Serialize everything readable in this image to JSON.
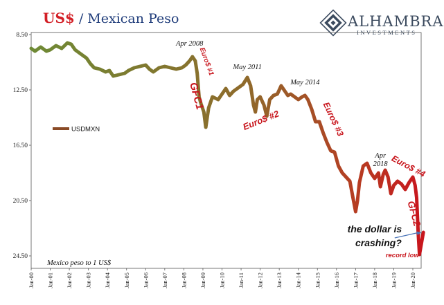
{
  "title": {
    "part1": "US$",
    "part2": " / Mexican Peso"
  },
  "brand": {
    "name": "ALHAMBRA",
    "sub": "INVESTMENTS"
  },
  "colors": {
    "line_start": "#6e8a35",
    "line_end": "#c8161d",
    "title_red": "#d31f26",
    "title_blue": "#1f3c7a",
    "annotation_red": "#c8161d"
  },
  "chart_data": {
    "type": "line",
    "title": "US$ / Mexican Peso",
    "y_inverted": true,
    "ylim": [
      8.5,
      24.5
    ],
    "yticks": [
      "8.50",
      "12.50",
      "16.50",
      "20.50",
      "24.50"
    ],
    "xlim": [
      2000.0,
      2020.6
    ],
    "xticks": [
      "Jan-00",
      "Jan-01",
      "Jan-02",
      "Jan-03",
      "Jan-04",
      "Jan-05",
      "Jan-06",
      "Jan-07",
      "Jan-08",
      "Jan-09",
      "Jan-10",
      "Jan-11",
      "Jan-12",
      "Jan-13",
      "Jan-14",
      "Jan-15",
      "Jan-16",
      "Jan-17",
      "Jan-18",
      "Jan-19",
      "Jan-20"
    ],
    "legend": {
      "label": "USDMXN",
      "position": "left-middle"
    },
    "note": "Mexico peso to 1 US$",
    "series": [
      {
        "name": "USDMXN",
        "x": [
          2000.0,
          2000.2,
          2000.5,
          2000.8,
          2001.0,
          2001.3,
          2001.6,
          2001.9,
          2002.1,
          2002.3,
          2002.6,
          2002.9,
          2003.1,
          2003.3,
          2003.6,
          2003.9,
          2004.1,
          2004.3,
          2004.6,
          2004.9,
          2005.1,
          2005.4,
          2005.7,
          2006.0,
          2006.2,
          2006.4,
          2006.7,
          2007.0,
          2007.3,
          2007.6,
          2007.9,
          2008.1,
          2008.3,
          2008.45,
          2008.6,
          2008.7,
          2008.8,
          2008.9,
          2009.05,
          2009.15,
          2009.3,
          2009.5,
          2009.8,
          2010.0,
          2010.2,
          2010.4,
          2010.6,
          2010.9,
          2011.1,
          2011.33,
          2011.5,
          2011.65,
          2011.75,
          2011.85,
          2012.0,
          2012.2,
          2012.35,
          2012.5,
          2012.7,
          2012.9,
          2013.1,
          2013.3,
          2013.45,
          2013.6,
          2013.8,
          2014.0,
          2014.2,
          2014.35,
          2014.5,
          2014.7,
          2014.9,
          2015.1,
          2015.3,
          2015.5,
          2015.7,
          2015.9,
          2016.1,
          2016.3,
          2016.5,
          2016.7,
          2016.85,
          2017.0,
          2017.1,
          2017.2,
          2017.4,
          2017.6,
          2017.8,
          2018.0,
          2018.2,
          2018.3,
          2018.45,
          2018.55,
          2018.7,
          2018.85,
          2019.0,
          2019.2,
          2019.4,
          2019.6,
          2019.8,
          2020.0,
          2020.12,
          2020.2,
          2020.28,
          2020.35,
          2020.45,
          2020.55
        ],
        "values": [
          9.5,
          9.7,
          9.4,
          9.7,
          9.6,
          9.3,
          9.5,
          9.1,
          9.2,
          9.6,
          9.9,
          10.2,
          10.6,
          10.9,
          11.0,
          11.2,
          11.1,
          11.5,
          11.4,
          11.3,
          11.1,
          10.9,
          10.8,
          10.7,
          11.0,
          11.2,
          10.9,
          10.8,
          10.9,
          11.0,
          10.9,
          10.7,
          10.4,
          10.1,
          10.4,
          11.3,
          13.0,
          13.5,
          14.1,
          15.2,
          13.8,
          13.0,
          13.2,
          12.8,
          12.4,
          12.9,
          12.6,
          12.3,
          12.1,
          11.6,
          12.2,
          13.6,
          14.1,
          13.2,
          13.0,
          13.6,
          14.4,
          13.2,
          12.9,
          12.8,
          12.2,
          12.6,
          12.9,
          12.8,
          13.0,
          13.2,
          13.0,
          12.9,
          13.2,
          13.9,
          14.8,
          14.8,
          15.6,
          16.3,
          16.9,
          17.0,
          18.0,
          18.5,
          18.8,
          19.1,
          20.2,
          21.3,
          20.5,
          19.2,
          18.0,
          17.8,
          18.5,
          18.9,
          18.5,
          19.5,
          18.6,
          18.3,
          18.8,
          20.0,
          19.4,
          19.1,
          19.3,
          19.7,
          19.2,
          18.8,
          19.4,
          20.3,
          22.8,
          24.4,
          23.6,
          22.8
        ]
      }
    ],
    "annotations": [
      {
        "text": "Apr 2008",
        "x": 2008.3,
        "y": 9.3,
        "style": "black"
      },
      {
        "text": "May 2011",
        "x": 2011.33,
        "y": 11.0,
        "style": "black"
      },
      {
        "text": "May 2014",
        "x": 2014.35,
        "y": 12.1,
        "style": "black"
      },
      {
        "text": "Apr",
        "x": 2018.3,
        "y": 17.4,
        "style": "black"
      },
      {
        "text": "2018",
        "x": 2018.3,
        "y": 18.0,
        "style": "black"
      },
      {
        "text": "Euro$ #1",
        "x": 2009.1,
        "y": 10.5,
        "style": "red",
        "size": 10,
        "rotate": 70
      },
      {
        "text": "GFC1",
        "x": 2008.5,
        "y": 13.0,
        "style": "red",
        "size": 15,
        "rotate": 75
      },
      {
        "text": "Euro$ #2",
        "x": 2012.1,
        "y": 14.9,
        "style": "red",
        "size": 13,
        "rotate": -22
      },
      {
        "text": "Euro$ #3",
        "x": 2015.7,
        "y": 14.7,
        "style": "red",
        "size": 12.5,
        "rotate": 65
      },
      {
        "text": "Euro$ #4",
        "x": 2019.7,
        "y": 18.2,
        "style": "red",
        "size": 12.5,
        "rotate": 28
      },
      {
        "text": "GFC2",
        "x": 2019.9,
        "y": 21.5,
        "style": "red",
        "size": 14,
        "rotate": 75
      },
      {
        "text": "record low",
        "x": 2019.45,
        "y": 24.6,
        "style": "red",
        "size": 9.5,
        "rotate": 0
      },
      {
        "text": "the dollar is",
        "x": 2018.0,
        "y": 22.8,
        "style": "crash"
      },
      {
        "text": "crashing?",
        "x": 2018.2,
        "y": 23.8,
        "style": "crash"
      }
    ],
    "arrow": {
      "from": {
        "x": 2019.05,
        "y": 23.2
      },
      "to": {
        "x": 2020.45,
        "y": 22.8
      }
    }
  }
}
